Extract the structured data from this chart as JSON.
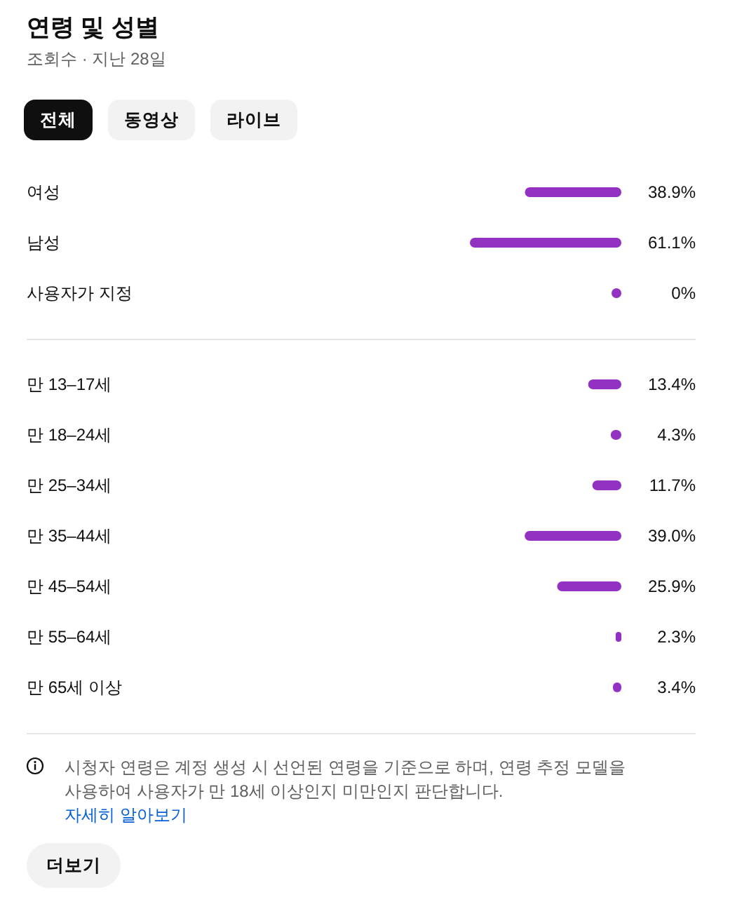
{
  "chart_data": [
    {
      "type": "bar",
      "orientation": "horizontal",
      "title": "연령 및 성별",
      "subtitle": "조회수 · 지난 28일",
      "annotations": [
        "전체",
        "동영상",
        "라이브"
      ],
      "categories": [
        "여성",
        "남성",
        "사용자가 지정"
      ],
      "values": [
        38.9,
        61.1,
        0
      ],
      "value_labels": [
        "38.9%",
        "61.1%",
        "0%"
      ],
      "color": "#9231c2",
      "tick_labels": "y"
    },
    {
      "type": "bar",
      "orientation": "horizontal",
      "annotations": [
        "시청자 연령은 계정 생성 시 선언된 연령을 기준으로 하며, 연령 추정 모델을 사용하여 사용자가 만 18세 이상인지 미만인지 판단합니다.",
        "자세히 알아보기",
        "더보기"
      ],
      "categories": [
        "만 13–17세",
        "만 18–24세",
        "만 25–34세",
        "만 35–44세",
        "만 45–54세",
        "만 55–64세",
        "만 65세 이상"
      ],
      "values": [
        13.4,
        4.3,
        11.7,
        39.0,
        25.9,
        2.3,
        3.4
      ],
      "value_labels": [
        "13.4%",
        "4.3%",
        "11.7%",
        "39.0%",
        "25.9%",
        "2.3%",
        "3.4%"
      ],
      "color": "#9231c2",
      "tick_labels": "y"
    }
  ]
}
